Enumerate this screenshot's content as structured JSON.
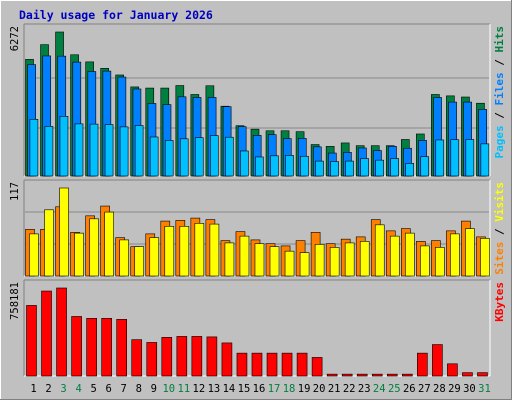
{
  "title": "Daily usage for January 2026",
  "colors": {
    "background": "#c0c0c0",
    "title": "#0000c0",
    "hits": "#008040",
    "files": "#0080ff",
    "pages": "#00c0ff",
    "visits": "#ffff00",
    "sites": "#ff8000",
    "kbytes": "#ff0000",
    "weekend_day_label": "#008040"
  },
  "chart_data": [
    {
      "type": "bar",
      "title": "Daily usage for January 2026",
      "axis_max_label": "6272",
      "legend": [
        "Pages",
        "Files",
        "Hits"
      ],
      "legend_separator": " / ",
      "categories": [
        "1",
        "2",
        "3",
        "4",
        "5",
        "6",
        "7",
        "8",
        "9",
        "10",
        "11",
        "12",
        "13",
        "14",
        "15",
        "16",
        "17",
        "18",
        "19",
        "20",
        "21",
        "22",
        "23",
        "24",
        "25",
        "26",
        "27",
        "28",
        "29",
        "30",
        "31"
      ],
      "series": [
        {
          "name": "Hits",
          "values": [
            5080,
            5720,
            6272,
            5280,
            4970,
            4690,
            4400,
            3880,
            3830,
            3830,
            3940,
            3550,
            3930,
            3040,
            2190,
            2040,
            1970,
            1970,
            1930,
            1370,
            1290,
            1440,
            1320,
            1320,
            1320,
            1590,
            1830,
            3550,
            3490,
            3440,
            3170
          ]
        },
        {
          "name": "Files",
          "values": [
            4850,
            5230,
            5220,
            4960,
            4550,
            4570,
            4310,
            3790,
            3160,
            3110,
            3450,
            3420,
            3420,
            3020,
            2150,
            1770,
            1800,
            1630,
            1640,
            1270,
            1000,
            1030,
            1220,
            1110,
            1290,
            1210,
            1550,
            3420,
            3220,
            3220,
            2900
          ]
        },
        {
          "name": "Pages",
          "values": [
            2470,
            2160,
            2600,
            2270,
            2260,
            2240,
            2140,
            2200,
            1700,
            1550,
            1620,
            1670,
            1760,
            1690,
            1090,
            830,
            880,
            900,
            860,
            650,
            630,
            650,
            760,
            690,
            760,
            550,
            840,
            1570,
            1580,
            1590,
            1400
          ]
        }
      ]
    },
    {
      "type": "bar",
      "axis_max_label": "117",
      "legend": [
        "Sites",
        "Visits"
      ],
      "legend_separator": " / ",
      "categories": [
        "1",
        "2",
        "3",
        "4",
        "5",
        "6",
        "7",
        "8",
        "9",
        "10",
        "11",
        "12",
        "13",
        "14",
        "15",
        "16",
        "17",
        "18",
        "19",
        "20",
        "21",
        "22",
        "23",
        "24",
        "25",
        "26",
        "27",
        "28",
        "29",
        "30",
        "31"
      ],
      "series": [
        {
          "name": "Visits",
          "values": [
            56,
            88,
            117,
            57,
            76,
            85,
            48,
            39,
            51,
            66,
            66,
            70,
            69,
            44,
            53,
            43,
            39,
            33,
            31,
            42,
            38,
            44,
            46,
            68,
            53,
            57,
            40,
            38,
            56,
            63,
            50
          ]
        },
        {
          "name": "Sites",
          "values": [
            62,
            62,
            92,
            58,
            80,
            93,
            51,
            39,
            56,
            73,
            74,
            77,
            75,
            47,
            59,
            48,
            43,
            40,
            47,
            58,
            43,
            49,
            52,
            75,
            60,
            63,
            46,
            47,
            60,
            73,
            52
          ]
        }
      ]
    },
    {
      "type": "bar",
      "axis_max_label": "758181",
      "legend": [
        "KBytes"
      ],
      "categories": [
        "1",
        "2",
        "3",
        "4",
        "5",
        "6",
        "7",
        "8",
        "9",
        "10",
        "11",
        "12",
        "13",
        "14",
        "15",
        "16",
        "17",
        "18",
        "19",
        "20",
        "21",
        "22",
        "23",
        "24",
        "25",
        "26",
        "27",
        "28",
        "29",
        "30",
        "31"
      ],
      "series": [
        {
          "name": "KBytes",
          "values": [
            608000,
            732000,
            758181,
            513000,
            497000,
            497000,
            488000,
            313000,
            289000,
            333000,
            341000,
            341000,
            337000,
            285000,
            197000,
            197000,
            197000,
            197000,
            197000,
            160000,
            16000,
            16000,
            16000,
            16000,
            16000,
            16000,
            197000,
            271000,
            105000,
            29000,
            29000
          ]
        }
      ]
    }
  ],
  "weekend_days": [
    "3",
    "4",
    "10",
    "11",
    "17",
    "18",
    "24",
    "25",
    "31"
  ]
}
